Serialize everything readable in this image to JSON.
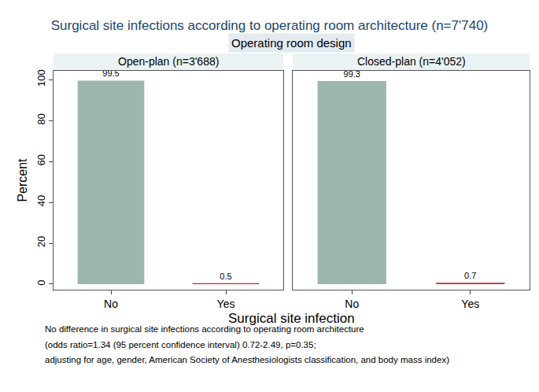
{
  "figure": {
    "title": "Surgical site infections according to operating room architecture (n=7'740)",
    "subtitle": "Operating room design",
    "x_label": "Surgical site infection",
    "note": [
      "No difference in surgical site infections according to operating room architecture",
      "(odds ratio=1.34 (95 percent confidence interval) 0.72-2.49, p=0.35;",
      "adjusting for age, gender, American Society of Anesthesiologists classification, and body mass index)"
    ]
  },
  "chart_data": [
    {
      "type": "bar",
      "title": "Open-plan (n=3'688)",
      "y_label": "Percent",
      "categories": [
        "No",
        "Yes"
      ],
      "values": [
        99.5,
        0.5
      ],
      "colors": [
        "#9db6ae",
        "#c1272d"
      ],
      "ylim": [
        -2.7,
        104.3
      ],
      "yticks": [
        0,
        20,
        40,
        60,
        80,
        100
      ],
      "grid": false,
      "data_labels": true
    },
    {
      "type": "bar",
      "title": "Closed-plan (n=4'052)",
      "categories": [
        "No",
        "Yes"
      ],
      "values": [
        99.3,
        0.7
      ],
      "colors": [
        "#9db6ae",
        "#c1272d"
      ],
      "ylim": [
        -2.7,
        104.3
      ],
      "yticks": [
        0,
        20,
        40,
        60,
        80,
        100
      ],
      "grid": false,
      "data_labels": true,
      "tick_labels": "x"
    }
  ]
}
